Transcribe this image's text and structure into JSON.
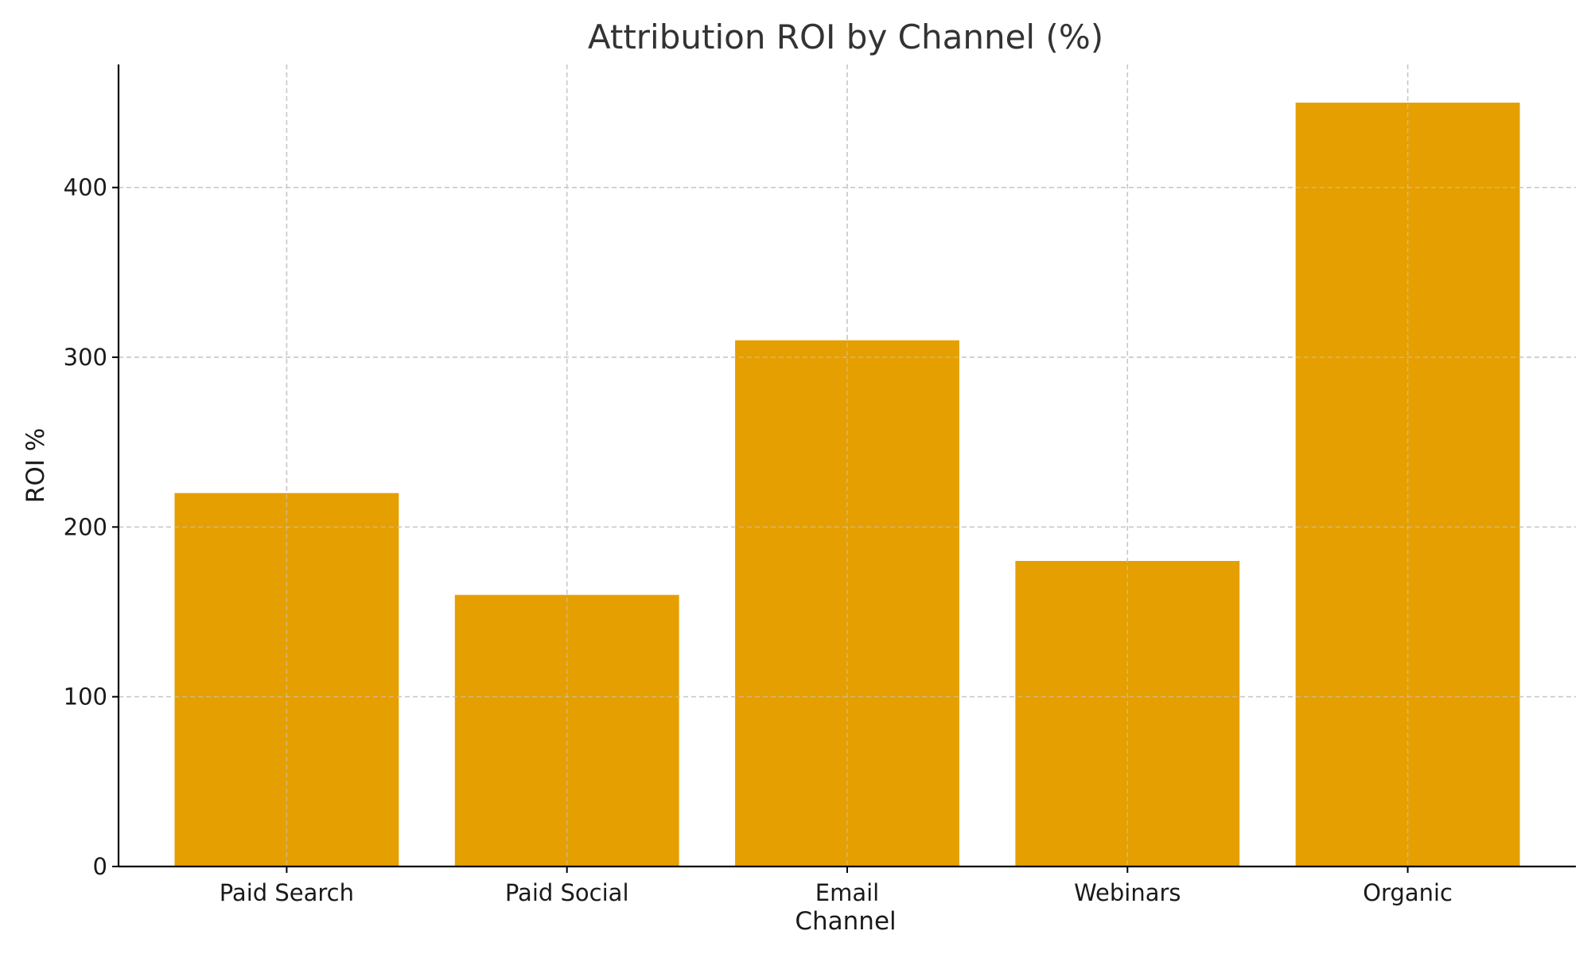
{
  "chart_data": {
    "type": "bar",
    "title": "Attribution ROI by Channel (%)",
    "xlabel": "Channel",
    "ylabel": "ROI %",
    "categories": [
      "Paid Search",
      "Paid Social",
      "Email",
      "Webinars",
      "Organic"
    ],
    "values": [
      220,
      160,
      310,
      180,
      450
    ],
    "ylim": [
      0,
      472.5
    ],
    "yticks": [
      0,
      100,
      200,
      300,
      400
    ],
    "grid": true,
    "legend": "none",
    "colors": {
      "bar": "#E69F00",
      "grid": "#c8c8c8",
      "axis": "#000000",
      "text": "#1a1a1a",
      "title": "#333333"
    }
  }
}
